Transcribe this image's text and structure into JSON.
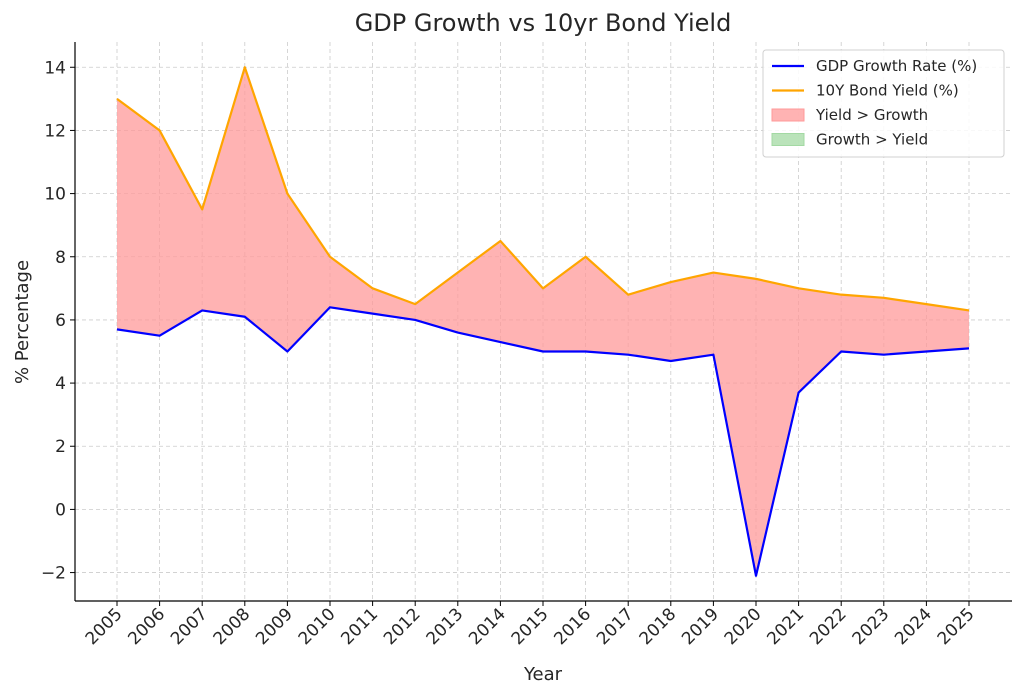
{
  "chart_data": {
    "type": "line",
    "title": "GDP Growth vs 10yr Bond Yield",
    "xlabel": "Year",
    "ylabel": "% Percentage",
    "categories": [
      "2005",
      "2006",
      "2007",
      "2008",
      "2009",
      "2010",
      "2011",
      "2012",
      "2013",
      "2014",
      "2015",
      "2016",
      "2017",
      "2018",
      "2019",
      "2020",
      "2021",
      "2022",
      "2023",
      "2024",
      "2025"
    ],
    "series": [
      {
        "name": "GDP Growth Rate (%)",
        "color": "#0000ff",
        "values": [
          5.7,
          5.5,
          6.3,
          6.1,
          5.0,
          6.4,
          6.2,
          6.0,
          5.6,
          5.3,
          5.0,
          5.0,
          4.9,
          4.7,
          4.9,
          -2.1,
          3.7,
          5.0,
          4.9,
          5.0,
          5.1
        ]
      },
      {
        "name": "10Y Bond Yield (%)",
        "color": "#ffa500",
        "values": [
          13.0,
          12.0,
          9.5,
          14.0,
          10.0,
          8.0,
          7.0,
          6.5,
          7.5,
          8.5,
          7.0,
          8.0,
          6.8,
          7.2,
          7.5,
          7.3,
          7.0,
          6.8,
          6.7,
          6.5,
          6.3
        ]
      }
    ],
    "fills": [
      {
        "name": "Yield > Growth",
        "color": "#ff9999"
      },
      {
        "name": "Growth > Yield",
        "color": "#a3d9a3"
      }
    ],
    "ylim": [
      -2.9,
      14.8
    ],
    "yticks": [
      -2,
      0,
      2,
      4,
      6,
      8,
      10,
      12,
      14
    ],
    "ytick_labels": [
      "−2",
      "0",
      "2",
      "4",
      "6",
      "8",
      "10",
      "12",
      "14"
    ],
    "grid": true,
    "legend_position": "top-right"
  }
}
